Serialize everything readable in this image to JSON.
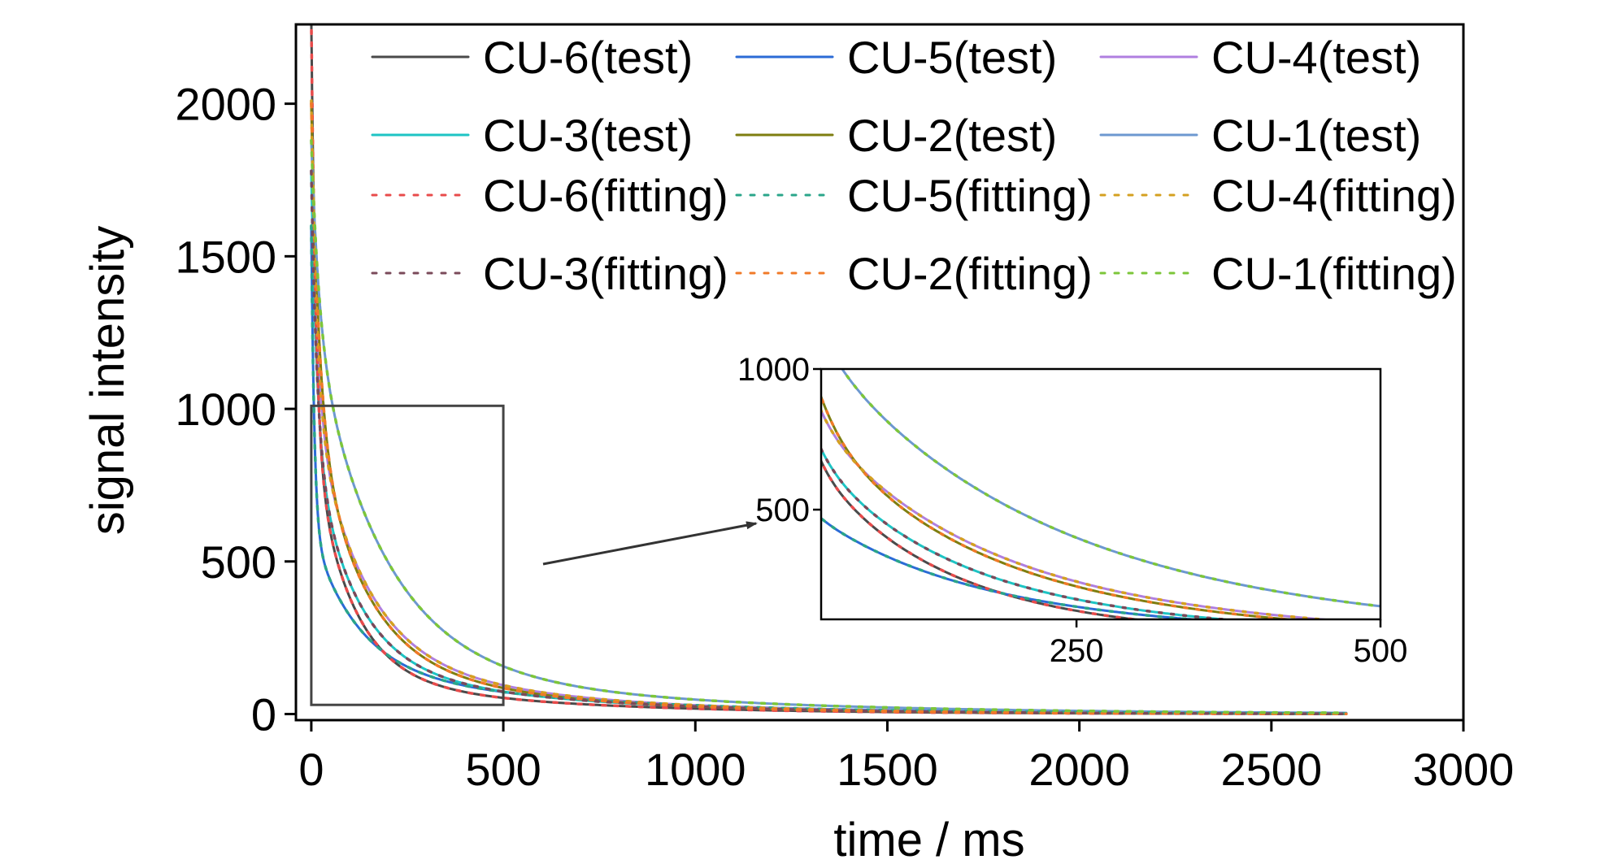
{
  "chart_data": {
    "type": "line",
    "xlabel": "time / ms",
    "ylabel": "signal intensity",
    "xlim": [
      -40,
      3000
    ],
    "ylim": [
      -20,
      2260
    ],
    "x_ticks": [
      "0",
      "500",
      "1000",
      "1500",
      "2000",
      "2500",
      "3000"
    ],
    "y_ticks": [
      "0",
      "500",
      "1000",
      "1500",
      "2000"
    ],
    "grid": false,
    "legend_position": "top",
    "x_end": 2700,
    "series": [
      {
        "name": "CU-6(test)",
        "style": "solid",
        "color": "#4a4a4a",
        "amplitudes": [
          1400,
          750,
          130
        ],
        "time_constants": [
          12,
          100,
          500
        ]
      },
      {
        "name": "CU-5(test)",
        "style": "solid",
        "color": "#2b6bd6",
        "amplitudes": [
          1000,
          450,
          150
        ],
        "time_constants": [
          8,
          120,
          600
        ]
      },
      {
        "name": "CU-4(test)",
        "style": "solid",
        "color": "#b07fe0",
        "amplitudes": [
          1000,
          800,
          210
        ],
        "time_constants": [
          15,
          130,
          500
        ]
      },
      {
        "name": "CU-3(test)",
        "style": "solid",
        "color": "#1ec4c4",
        "amplitudes": [
          900,
          700,
          180
        ],
        "time_constants": [
          15,
          110,
          500
        ]
      },
      {
        "name": "CU-2(test)",
        "style": "solid",
        "color": "#7e7e10",
        "amplitudes": [
          1000,
          800,
          200
        ],
        "time_constants": [
          20,
          125,
          480
        ]
      },
      {
        "name": "CU-1(test)",
        "style": "solid",
        "color": "#6d98d0",
        "amplitudes": [
          600,
          1100,
          180
        ],
        "time_constants": [
          20,
          180,
          700
        ]
      },
      {
        "name": "CU-6(fitting)",
        "style": "dotted",
        "color": "#e84b4b",
        "amplitudes": [
          1400,
          750,
          130
        ],
        "time_constants": [
          12,
          100,
          500
        ]
      },
      {
        "name": "CU-5(fitting)",
        "style": "dotted",
        "color": "#2aa58a",
        "amplitudes": [
          1000,
          450,
          150
        ],
        "time_constants": [
          8,
          120,
          600
        ]
      },
      {
        "name": "CU-4(fitting)",
        "style": "dotted",
        "color": "#d4a020",
        "amplitudes": [
          1000,
          800,
          210
        ],
        "time_constants": [
          15,
          130,
          500
        ]
      },
      {
        "name": "CU-3(fitting)",
        "style": "dotted",
        "color": "#7a4a5a",
        "amplitudes": [
          900,
          700,
          180
        ],
        "time_constants": [
          15,
          110,
          500
        ]
      },
      {
        "name": "CU-2(fitting)",
        "style": "dotted",
        "color": "#f07a28",
        "amplitudes": [
          1000,
          800,
          200
        ],
        "time_constants": [
          20,
          125,
          480
        ]
      },
      {
        "name": "CU-1(fitting)",
        "style": "dotted",
        "color": "#7cc63a",
        "amplitudes": [
          600,
          1100,
          180
        ],
        "time_constants": [
          20,
          180,
          700
        ]
      }
    ],
    "zoom_region": {
      "x": [
        0,
        500
      ],
      "y": [
        30,
        1010
      ]
    },
    "inset": {
      "xlim": [
        40,
        500
      ],
      "ylim": [
        110,
        1000
      ],
      "x_ticks": [
        "250",
        "500"
      ],
      "y_ticks": [
        "500",
        "1000"
      ]
    }
  }
}
